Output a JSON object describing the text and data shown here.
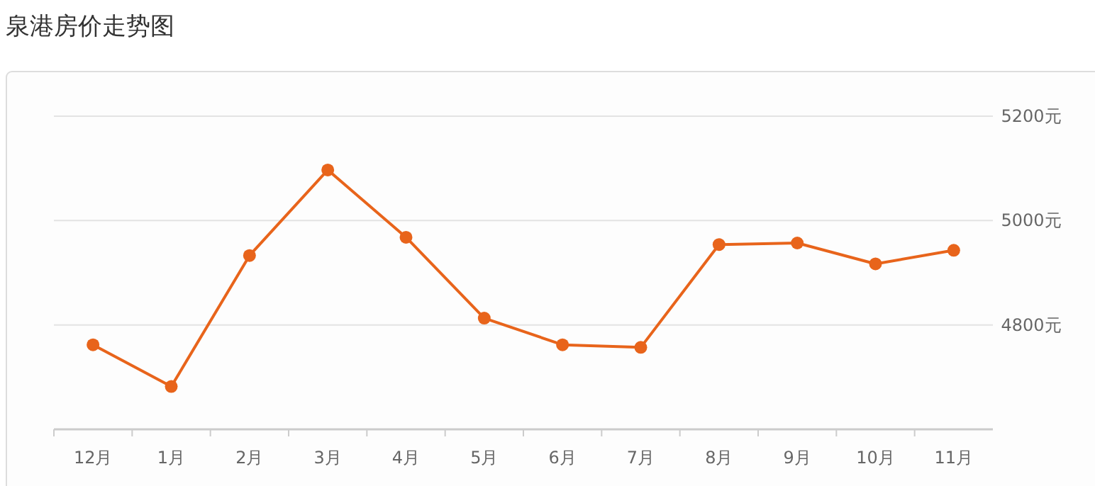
{
  "chart_data": {
    "type": "line",
    "title": "泉港房价走势图",
    "categories": [
      "12月",
      "1月",
      "2月",
      "3月",
      "4月",
      "5月",
      "6月",
      "7月",
      "8月",
      "9月",
      "10月",
      "11月"
    ],
    "series": [
      {
        "color": "#e8641b",
        "values": [
          4762,
          4682,
          4933,
          5097,
          4968,
          4813,
          4762,
          4757,
          4954,
          4957,
          4917,
          4943
        ]
      }
    ],
    "ylim": [
      4600,
      5200
    ],
    "yticks": [
      {
        "value": 4800,
        "label": "4800元"
      },
      {
        "value": 5000,
        "label": "5000元"
      },
      {
        "value": 5200,
        "label": "5200元"
      }
    ],
    "grid": "y",
    "marker": "circle",
    "line_style": "solid"
  }
}
